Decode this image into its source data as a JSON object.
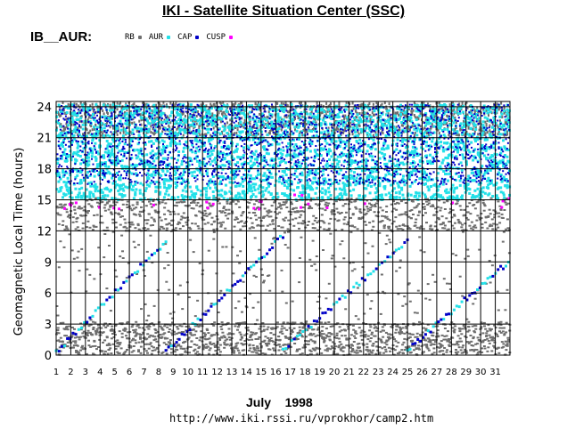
{
  "title": "IKI - Satellite Situation Center (SSC)",
  "instrument": "IB__AUR:",
  "legend": [
    {
      "label": "RB",
      "color": "#6e6e6e"
    },
    {
      "label": "AUR",
      "color": "#22e0e8"
    },
    {
      "label": "CAP",
      "color": "#0000c8"
    },
    {
      "label": "CUSP",
      "color": "#ff00ff"
    }
  ],
  "month_label": "July    1998",
  "url": "http://www.iki.rssi.ru/vprokhor/camp2.htm",
  "chart_data": {
    "type": "scatter",
    "title": "IKI - Satellite Situation Center (SSC)",
    "xlabel": "July    1998",
    "ylabel": "Geomagnetic Local Time (hours)",
    "x_ticks": [
      "1",
      "2",
      "3",
      "4",
      "5",
      "6",
      "7",
      "8",
      "9",
      "10",
      "11",
      "12",
      "13",
      "14",
      "15",
      "16",
      "17",
      "18",
      "19",
      "20",
      "21",
      "22",
      "23",
      "24",
      "25",
      "26",
      "27",
      "28",
      "29",
      "30",
      "31"
    ],
    "y_ticks": [
      "0",
      "3",
      "6",
      "9",
      "12",
      "15",
      "18",
      "21",
      "24"
    ],
    "xlim": [
      1,
      32
    ],
    "ylim": [
      0,
      24.5
    ],
    "grid": true,
    "series": [
      {
        "name": "RB",
        "color": "#6e6e6e",
        "description": "dense bands at 0-3 h and 12-15 h; scattered points in 3-12 h; dark columns 21-24 h"
      },
      {
        "name": "AUR",
        "color": "#22e0e8",
        "description": "dense vertical streaks each pass between 15 and 24 h"
      },
      {
        "name": "CAP",
        "color": "#0000c8",
        "description": "vertical streaks each pass between 16.5 and 24 h, plus a slowly drifting diagonal trace through 0-12 h"
      },
      {
        "name": "CUSP",
        "color": "#ff00ff",
        "description": "sparse points near 14-15.5 h"
      }
    ]
  }
}
